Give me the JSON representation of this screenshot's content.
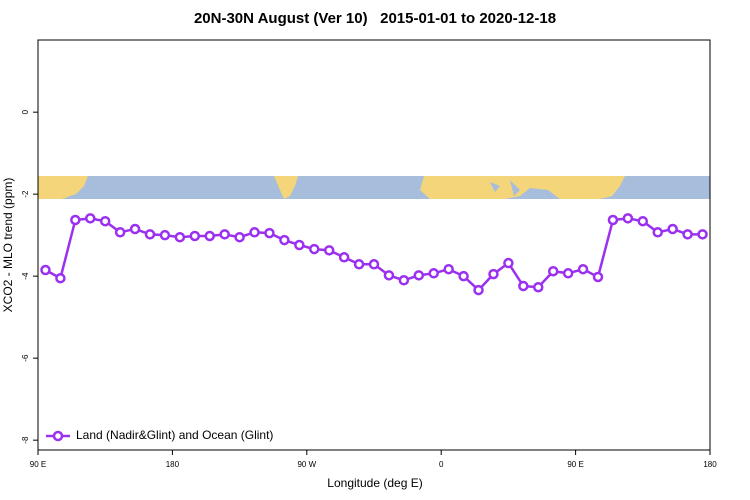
{
  "chart_data": {
    "type": "line",
    "title": "20N-30N August (Ver 10)   2015-01-01 to 2020-12-18",
    "x_label": "Longitude (deg E)",
    "y_label": "XCO2 - MLO trend (ppm)",
    "x": [
      95,
      105,
      115,
      125,
      135,
      145,
      155,
      165,
      175,
      185,
      195,
      205,
      215,
      225,
      235,
      245,
      255,
      265,
      275,
      285,
      295,
      305,
      315,
      325,
      335,
      345,
      355,
      365,
      375,
      385,
      395,
      405,
      415,
      425,
      435,
      445,
      455,
      465,
      475,
      485,
      495,
      505,
      515,
      525,
      535
    ],
    "series": [
      {
        "name": "Land (Nadir&Glint) and Ocean (Glint)",
        "color": "#9b30f0",
        "values": [
          -3.85,
          -4.05,
          -2.63,
          -2.59,
          -2.66,
          -2.93,
          -2.85,
          -2.98,
          -3.0,
          -3.05,
          -3.02,
          -3.02,
          -2.98,
          -3.05,
          -2.93,
          -2.95,
          -3.12,
          -3.24,
          -3.34,
          -3.37,
          -3.54,
          -3.71,
          -3.71,
          -3.98,
          -4.1,
          -3.98,
          -3.93,
          -3.83,
          -4.0,
          -4.34,
          -3.95,
          -3.68,
          -4.24,
          -4.27,
          -3.88,
          -3.93,
          -3.83,
          -4.02,
          -2.63,
          -2.59,
          -2.66,
          -2.93,
          -2.85,
          -2.98,
          -2.98
        ]
      }
    ],
    "xlim": [
      90,
      540
    ],
    "xticks": [
      {
        "value": 90,
        "label": "90 E"
      },
      180,
      {
        "value": 270,
        "label": "90 W"
      },
      {
        "value": 360,
        "label": "0"
      },
      {
        "value": 450,
        "label": "90 E"
      },
      {
        "value": 540,
        "label": "180"
      }
    ],
    "ylim": [
      -8.24,
      1.76
    ],
    "yticks": [
      -8,
      -6,
      -4,
      -2,
      0
    ],
    "legend": "bottom-left"
  }
}
